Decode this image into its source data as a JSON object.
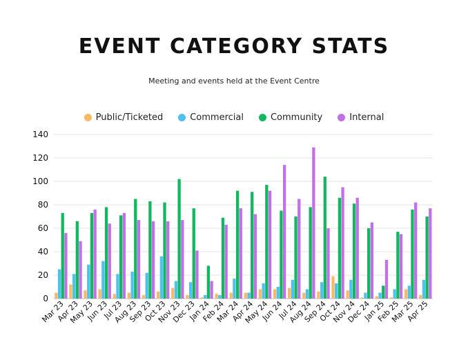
{
  "chart_data": {
    "type": "bar",
    "title": "EVENT CATEGORY STATS",
    "subtitle": "Meeting and events held at the Event Centre",
    "xlabel": "",
    "ylabel": "",
    "ylim": [
      0,
      140
    ],
    "yticks": [
      0,
      20,
      40,
      60,
      80,
      100,
      120,
      140
    ],
    "grid": true,
    "legend_position": "top-center",
    "categories": [
      "Mar 23",
      "Apr 23",
      "May 23",
      "Jun 23",
      "Jul 23",
      "Aug 23",
      "Sep 23",
      "Oct 23",
      "Nov 23",
      "Dec 23",
      "Jan 24",
      "Feb 24",
      "Mar 24",
      "Apr 24",
      "May 24",
      "Jun 24",
      "Jul 24",
      "Aug 24",
      "Sep 24",
      "Oct 24",
      "Nov 24",
      "Dec 24",
      "Jan 25",
      "Feb 25",
      "Mar 25",
      "Apr 25"
    ],
    "series": [
      {
        "name": "Public/Ticketed",
        "color": "#f9b966",
        "values": [
          5,
          12,
          7,
          8,
          4,
          5,
          3,
          6,
          9,
          3,
          1,
          4,
          5,
          5,
          8,
          8,
          9,
          5,
          6,
          19,
          7,
          1,
          2,
          1,
          8,
          3
        ]
      },
      {
        "name": "Commercial",
        "color": "#4fc1ee",
        "values": [
          25,
          21,
          29,
          32,
          21,
          23,
          22,
          36,
          15,
          14,
          3,
          3,
          17,
          5,
          13,
          10,
          16,
          8,
          14,
          13,
          16,
          5,
          5,
          8,
          11,
          16
        ]
      },
      {
        "name": "Community",
        "color": "#11b85f",
        "values": [
          73,
          66,
          73,
          78,
          71,
          85,
          83,
          82,
          102,
          77,
          28,
          69,
          92,
          91,
          97,
          75,
          70,
          78,
          104,
          86,
          81,
          60,
          11,
          57,
          76,
          70
        ]
      },
      {
        "name": "Internal",
        "color": "#c270e6",
        "values": [
          56,
          49,
          76,
          64,
          73,
          67,
          66,
          66,
          67,
          41,
          15,
          63,
          77,
          72,
          92,
          114,
          85,
          129,
          60,
          95,
          86,
          65,
          33,
          55,
          82,
          77
        ]
      }
    ]
  }
}
